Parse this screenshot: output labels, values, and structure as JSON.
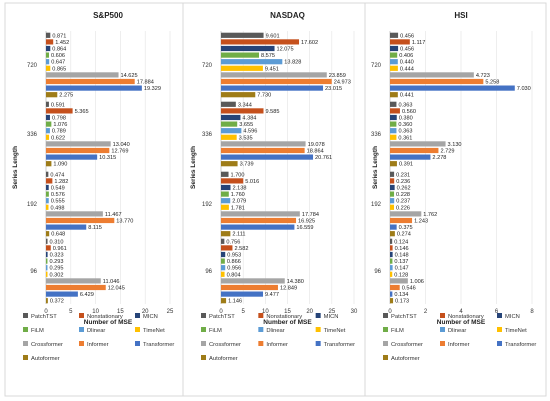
{
  "chart_data": [
    {
      "type": "bar",
      "orientation": "horizontal",
      "title": "S&P500",
      "xlabel": "Number of MSE",
      "ylabel": "Series Length",
      "categories": [
        "96",
        "192",
        "336",
        "720"
      ],
      "xlim": [
        0,
        25
      ],
      "xticks": [
        "0",
        "5",
        "10",
        "15",
        "20",
        "25"
      ],
      "grid": true,
      "series": [
        {
          "name": "PatchTST",
          "values": [
            0.31,
            0.474,
            0.591,
            0.871
          ],
          "labels": [
            "0.310",
            "0.474",
            "0.591",
            "0.871"
          ]
        },
        {
          "name": "Nonstationary",
          "values": [
            0.961,
            1.282,
            5.365,
            1.452
          ],
          "labels": [
            "0.961",
            "1.282",
            "5.365",
            "1.452"
          ]
        },
        {
          "name": "MICN",
          "values": [
            0.323,
            0.549,
            0.798,
            0.864
          ],
          "labels": [
            "0.323",
            "0.549",
            "0.798",
            "0.864"
          ]
        },
        {
          "name": "FiLM",
          "values": [
            0.293,
            0.576,
            1.076,
            0.606
          ],
          "labels": [
            "0.293",
            "0.576",
            "1.076",
            "0.606"
          ]
        },
        {
          "name": "Dlinear",
          "values": [
            0.295,
            0.555,
            0.789,
            0.647
          ],
          "labels": [
            "0.295",
            "0.555",
            "0.789",
            "0.647"
          ]
        },
        {
          "name": "TimeNet",
          "values": [
            0.302,
            0.498,
            0.622,
            0.865
          ],
          "labels": [
            "0.302",
            "0.498",
            "0.622",
            "0.865"
          ]
        },
        {
          "name": "Crossformer",
          "values": [
            11.046,
            11.467,
            13.04,
            14.625
          ],
          "labels": [
            "11.046",
            "11.467",
            "13.040",
            "14.625"
          ]
        },
        {
          "name": "Informer",
          "values": [
            12.045,
            13.77,
            12.769,
            17.884
          ],
          "labels": [
            "12.045",
            "13.770",
            "12.769",
            "17.884"
          ]
        },
        {
          "name": "Transformer",
          "values": [
            6.429,
            8.115,
            10.315,
            19.329
          ],
          "labels": [
            "6.429",
            "8.115",
            "10.315",
            "19.329"
          ]
        },
        {
          "name": "Autoformer",
          "values": [
            0.372,
            0.648,
            1.09,
            2.275
          ],
          "labels": [
            "0.372",
            "0.648",
            "1.090",
            "2.275"
          ]
        }
      ]
    },
    {
      "type": "bar",
      "orientation": "horizontal",
      "title": "NASDAQ",
      "xlabel": "Number of MSE",
      "ylabel": "Series Length",
      "categories": [
        "96",
        "192",
        "336",
        "720"
      ],
      "xlim": [
        0,
        30
      ],
      "xticks": [
        "0",
        "5",
        "10",
        "15",
        "20",
        "25",
        "30"
      ],
      "grid": true,
      "series": [
        {
          "name": "PatchTST",
          "values": [
            0.756,
            1.7,
            3.344,
            9.601
          ],
          "labels": [
            "0.756",
            "1.700",
            "3.344",
            "9.601"
          ]
        },
        {
          "name": "Nonstationary",
          "values": [
            2.582,
            5.016,
            9.585,
            17.602
          ],
          "labels": [
            "2.582",
            "5.016",
            "9.585",
            "17.602"
          ]
        },
        {
          "name": "MICN",
          "values": [
            0.953,
            2.138,
            4.384,
            12.075
          ],
          "labels": [
            "0.953",
            "2.138",
            "4.384",
            "12.075"
          ]
        },
        {
          "name": "FiLM",
          "values": [
            0.866,
            1.76,
            3.655,
            8.575
          ],
          "labels": [
            "0.866",
            "1.760",
            "3.655",
            "8.575"
          ]
        },
        {
          "name": "Dlinear",
          "values": [
            0.956,
            2.079,
            4.596,
            13.828
          ],
          "labels": [
            "0.956",
            "2.079",
            "4.596",
            "13.828"
          ]
        },
        {
          "name": "TimeNet",
          "values": [
            0.804,
            1.781,
            3.535,
            9.451
          ],
          "labels": [
            "0.804",
            "1.781",
            "3.535",
            "9.451"
          ]
        },
        {
          "name": "Crossformer",
          "values": [
            14.38,
            17.784,
            19.078,
            23.859
          ],
          "labels": [
            "14.380",
            "17.784",
            "19.078",
            "23.859"
          ]
        },
        {
          "name": "Informer",
          "values": [
            12.849,
            16.925,
            18.864,
            24.973
          ],
          "labels": [
            "12.849",
            "16.925",
            "18.864",
            "24.973"
          ]
        },
        {
          "name": "Transformer",
          "values": [
            9.477,
            16.559,
            20.761,
            23.015
          ],
          "labels": [
            "9.477",
            "16.559",
            "20.761",
            "23.015"
          ]
        },
        {
          "name": "Autoformer",
          "values": [
            1.146,
            2.111,
            3.739,
            7.73
          ],
          "labels": [
            "1.146",
            "2.111",
            "3.739",
            "7.730"
          ]
        }
      ]
    },
    {
      "type": "bar",
      "orientation": "horizontal",
      "title": "HSI",
      "xlabel": "Number of MSE",
      "ylabel": "Series Length",
      "categories": [
        "96",
        "192",
        "336",
        "720"
      ],
      "xlim": [
        0,
        8
      ],
      "xticks": [
        "0",
        "2",
        "4",
        "6",
        "8"
      ],
      "grid": true,
      "series": [
        {
          "name": "PatchTST",
          "values": [
            0.124,
            0.231,
            0.363,
            0.456
          ],
          "labels": [
            "0.124",
            "0.231",
            "0.363",
            "0.456"
          ]
        },
        {
          "name": "Nonstationary",
          "values": [
            0.146,
            0.236,
            0.56,
            1.117
          ],
          "labels": [
            "0.146",
            "0.236",
            "0.560",
            "1.117"
          ]
        },
        {
          "name": "MICN",
          "values": [
            0.148,
            0.262,
            0.38,
            0.456
          ],
          "labels": [
            "0.148",
            "0.262",
            "0.380",
            "0.456"
          ]
        },
        {
          "name": "FiLM",
          "values": [
            0.137,
            0.228,
            0.36,
            0.406
          ],
          "labels": [
            "0.137",
            "0.228",
            "0.360",
            "0.406"
          ]
        },
        {
          "name": "Dlinear",
          "values": [
            0.147,
            0.237,
            0.363,
            0.44
          ],
          "labels": [
            "0.147",
            "0.237",
            "0.363",
            "0.440"
          ]
        },
        {
          "name": "TimeNet",
          "values": [
            0.128,
            0.226,
            0.361,
            0.444
          ],
          "labels": [
            "0.128",
            "0.226",
            "0.361",
            "0.444"
          ]
        },
        {
          "name": "Crossformer",
          "values": [
            1.006,
            1.762,
            3.13,
            4.723
          ],
          "labels": [
            "1.006",
            "1.762",
            "3.130",
            "4.723"
          ]
        },
        {
          "name": "Informer",
          "values": [
            0.546,
            1.243,
            2.729,
            5.258
          ],
          "labels": [
            "0.546",
            "1.243",
            "2.729",
            "5.258"
          ]
        },
        {
          "name": "Transformer",
          "values": [
            0.134,
            0.375,
            2.278,
            7.03
          ],
          "labels": [
            "0.134",
            "0.375",
            "2.278",
            "7.030"
          ]
        },
        {
          "name": "Autoformer",
          "values": [
            0.173,
            0.274,
            0.391,
            0.441
          ],
          "labels": [
            "0.173",
            "0.274",
            "0.391",
            "0.441"
          ]
        }
      ]
    }
  ],
  "legend": {
    "placement": "bottom",
    "entries": [
      "PatchTST",
      "Nonstationary",
      "MICN",
      "FiLM",
      "Dlinear",
      "TimeNet",
      "Crossformer",
      "Informer",
      "Transformer",
      "Autoformer"
    ]
  },
  "colors": {
    "PatchTST": "#595959",
    "Nonstationary": "#c5501c",
    "MICN": "#264478",
    "FiLM": "#70ad47",
    "Dlinear": "#5b9bd5",
    "TimeNet": "#ffc000",
    "Crossformer": "#a5a5a5",
    "Informer": "#ed7d31",
    "Transformer": "#4472c4",
    "Autoformer": "#9e7c18"
  }
}
